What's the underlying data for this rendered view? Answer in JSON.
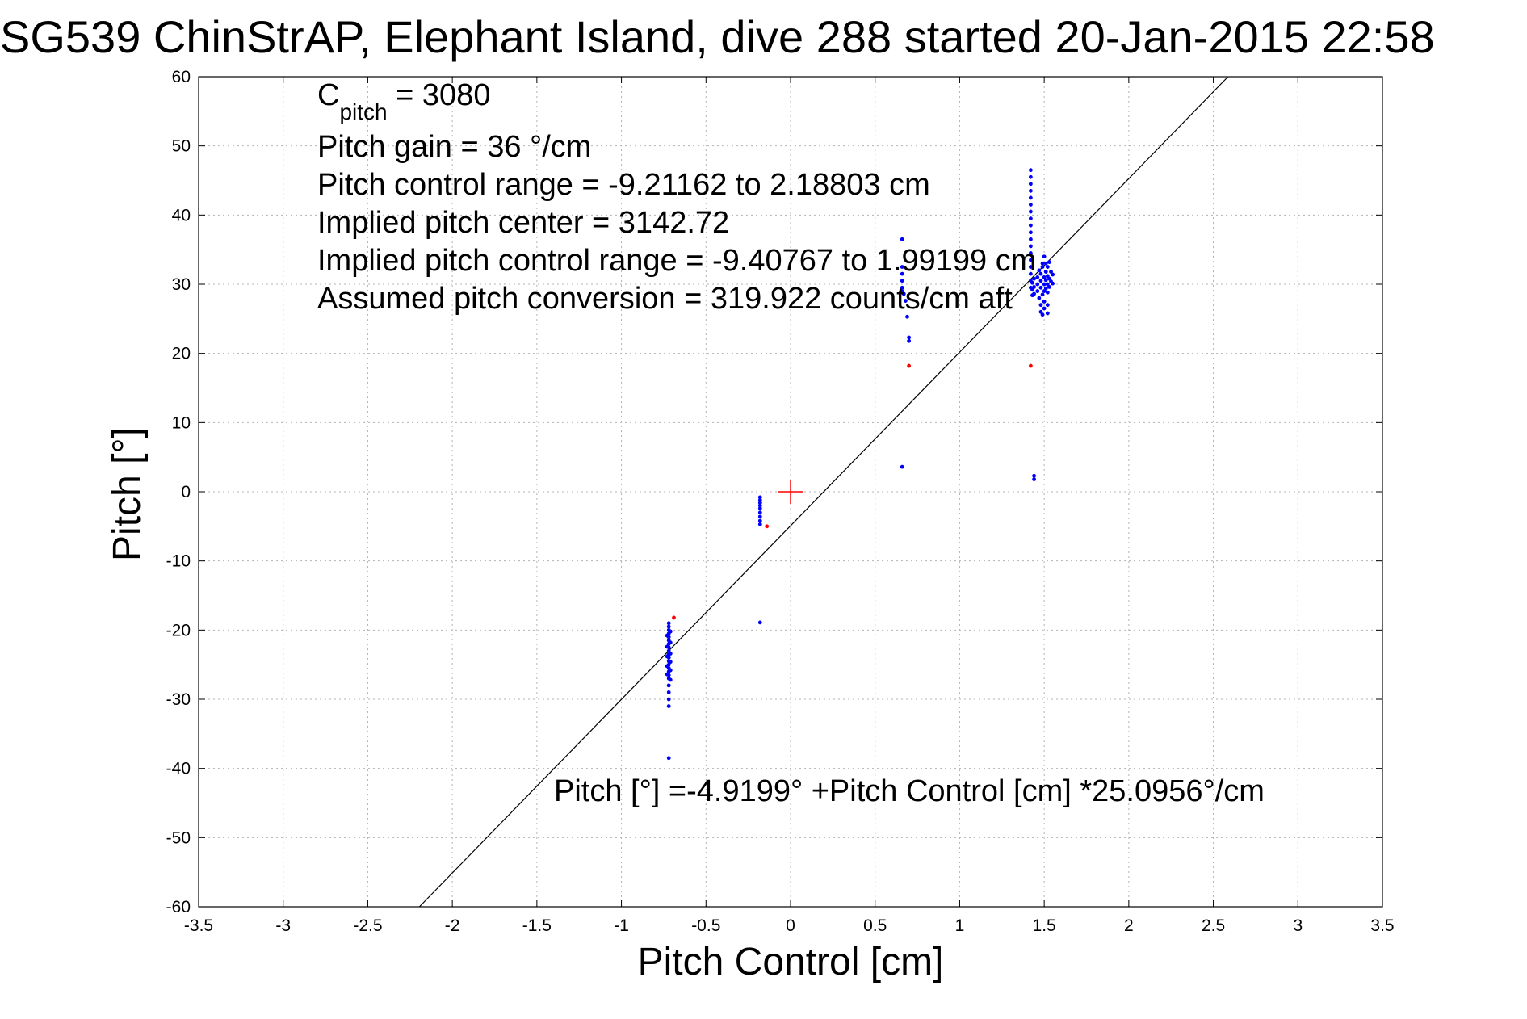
{
  "colors": {
    "samples": "#0000ff",
    "outliers": "#ff0000",
    "fit_line": "#000000",
    "center_marker": "#ff0000",
    "grid": "#b3b3b3"
  },
  "chart_data": {
    "type": "scatter",
    "title": "SG539 ChinStrAP, Elephant Island, dive 288 started 20-Jan-2015 22:58",
    "xlabel": "Pitch Control [cm]",
    "ylabel": "Pitch [°]",
    "xlim": [
      -3.5,
      3.5
    ],
    "ylim": [
      -60,
      60
    ],
    "xticks": [
      -3.5,
      -3,
      -2.5,
      -2,
      -1.5,
      -1,
      -0.5,
      0,
      0.5,
      1,
      1.5,
      2,
      2.5,
      3,
      3.5
    ],
    "yticks": [
      -60,
      -50,
      -40,
      -30,
      -20,
      -10,
      0,
      10,
      20,
      30,
      40,
      50,
      60
    ],
    "xtick_labels": [
      "-3.5",
      "-3",
      "-2.5",
      "-2",
      "-1.5",
      "-1",
      "-0.5",
      "0",
      "0.5",
      "1",
      "1.5",
      "2",
      "2.5",
      "3",
      "3.5"
    ],
    "ytick_labels": [
      "-60",
      "-50",
      "-40",
      "-30",
      "-20",
      "-10",
      "0",
      "10",
      "20",
      "30",
      "40",
      "50",
      "60"
    ],
    "grid": true,
    "annotations": {
      "c_pitch_main": "C",
      "c_pitch_sub": "pitch",
      "c_pitch_value": " = 3080",
      "pitch_gain": "Pitch gain = 36 °/cm",
      "control_range": "Pitch control range = -9.21162 to 2.18803 cm",
      "implied_center": "Implied pitch center = 3142.72",
      "implied_range": "Implied pitch control range = -9.40767 to 1.99199 cm",
      "conversion": "Assumed pitch conversion = 319.922 counts/cm aft",
      "fit_equation": "Pitch [°] =-4.9199° +Pitch Control [cm] *25.0956°/cm"
    },
    "fit_line": {
      "intercept": -4.9199,
      "slope": 25.0956
    },
    "center_marker": {
      "x": 0,
      "y": 0
    },
    "series": [
      {
        "color": "#0000ff",
        "points": [
          [
            -0.72,
            -19.0
          ],
          [
            -0.72,
            -19.5
          ],
          [
            -0.72,
            -20.0
          ],
          [
            -0.72,
            -20.5
          ],
          [
            -0.72,
            -21.0
          ],
          [
            -0.72,
            -21.5
          ],
          [
            -0.72,
            -22.0
          ],
          [
            -0.72,
            -22.5
          ],
          [
            -0.72,
            -23.0
          ],
          [
            -0.72,
            -23.5
          ],
          [
            -0.72,
            -24.0
          ],
          [
            -0.72,
            -24.5
          ],
          [
            -0.72,
            -25.0
          ],
          [
            -0.72,
            -25.5
          ],
          [
            -0.72,
            -26.0
          ],
          [
            -0.72,
            -26.5
          ],
          [
            -0.72,
            -27.0
          ],
          [
            -0.72,
            -28.0
          ],
          [
            -0.72,
            -29.0
          ],
          [
            -0.72,
            -30.0
          ],
          [
            -0.72,
            -31.0
          ],
          [
            -0.72,
            -38.5
          ],
          [
            -0.71,
            -20.2
          ],
          [
            -0.71,
            -21.8
          ],
          [
            -0.71,
            -23.4
          ],
          [
            -0.71,
            -24.6
          ],
          [
            -0.71,
            -25.8
          ],
          [
            -0.71,
            -27.2
          ],
          [
            -0.73,
            -20.8
          ],
          [
            -0.73,
            -22.4
          ],
          [
            -0.73,
            -23.8
          ],
          [
            -0.73,
            -25.2
          ],
          [
            -0.73,
            -26.4
          ],
          [
            -0.18,
            -0.8
          ],
          [
            -0.18,
            -1.2
          ],
          [
            -0.18,
            -1.6
          ],
          [
            -0.18,
            -2.0
          ],
          [
            -0.18,
            -2.4
          ],
          [
            -0.18,
            -3.0
          ],
          [
            -0.18,
            -3.6
          ],
          [
            -0.18,
            -4.2
          ],
          [
            -0.18,
            -4.7
          ],
          [
            -0.18,
            -18.9
          ],
          [
            0.66,
            36.5
          ],
          [
            0.66,
            32.5
          ],
          [
            0.66,
            31.5
          ],
          [
            0.66,
            30.5
          ],
          [
            0.66,
            29.5
          ],
          [
            0.66,
            29.0
          ],
          [
            0.66,
            3.6
          ],
          [
            0.67,
            28.6
          ],
          [
            0.68,
            27.6
          ],
          [
            0.69,
            25.3
          ],
          [
            0.7,
            22.3
          ],
          [
            0.7,
            21.8
          ],
          [
            1.42,
            46.5
          ],
          [
            1.42,
            45.5
          ],
          [
            1.42,
            44.5
          ],
          [
            1.42,
            43.5
          ],
          [
            1.42,
            42.5
          ],
          [
            1.42,
            41.5
          ],
          [
            1.42,
            40.5
          ],
          [
            1.42,
            39.5
          ],
          [
            1.42,
            38.5
          ],
          [
            1.42,
            37.5
          ],
          [
            1.42,
            36.5
          ],
          [
            1.42,
            35.5
          ],
          [
            1.42,
            34.5
          ],
          [
            1.42,
            33.5
          ],
          [
            1.42,
            32.5
          ],
          [
            1.42,
            31.5
          ],
          [
            1.42,
            30.5
          ],
          [
            1.42,
            29.5
          ],
          [
            1.43,
            30.2
          ],
          [
            1.43,
            29.2
          ],
          [
            1.43,
            28.4
          ],
          [
            1.44,
            30.8
          ],
          [
            1.44,
            29.6
          ],
          [
            1.44,
            28.6
          ],
          [
            1.44,
            2.3
          ],
          [
            1.44,
            1.8
          ],
          [
            1.46,
            31.0
          ],
          [
            1.46,
            30.0
          ],
          [
            1.46,
            29.0
          ],
          [
            1.47,
            28.0
          ],
          [
            1.47,
            32.0
          ],
          [
            1.48,
            27.0
          ],
          [
            1.48,
            26.0
          ],
          [
            1.48,
            31.5
          ],
          [
            1.48,
            30.5
          ],
          [
            1.48,
            29.5
          ],
          [
            1.49,
            33.0
          ],
          [
            1.49,
            32.5
          ],
          [
            1.49,
            25.6
          ],
          [
            1.49,
            28.5
          ],
          [
            1.5,
            34.0
          ],
          [
            1.5,
            31.0
          ],
          [
            1.5,
            30.0
          ],
          [
            1.5,
            29.0
          ],
          [
            1.5,
            27.5
          ],
          [
            1.5,
            26.5
          ],
          [
            1.51,
            33.0
          ],
          [
            1.51,
            31.8
          ],
          [
            1.51,
            30.6
          ],
          [
            1.51,
            29.4
          ],
          [
            1.52,
            32.5
          ],
          [
            1.52,
            31.2
          ],
          [
            1.52,
            30.0
          ],
          [
            1.52,
            28.8
          ],
          [
            1.52,
            27.0
          ],
          [
            1.52,
            25.8
          ],
          [
            1.53,
            33.2
          ],
          [
            1.53,
            30.8
          ],
          [
            1.53,
            29.6
          ],
          [
            1.54,
            31.8
          ],
          [
            1.54,
            30.4
          ],
          [
            1.55,
            31.4
          ],
          [
            1.55,
            30.1
          ]
        ]
      },
      {
        "color": "#ff0000",
        "points": [
          [
            -0.69,
            -18.2
          ],
          [
            -0.14,
            -5.0
          ],
          [
            0.7,
            18.2
          ],
          [
            1.42,
            18.2
          ]
        ]
      }
    ]
  }
}
